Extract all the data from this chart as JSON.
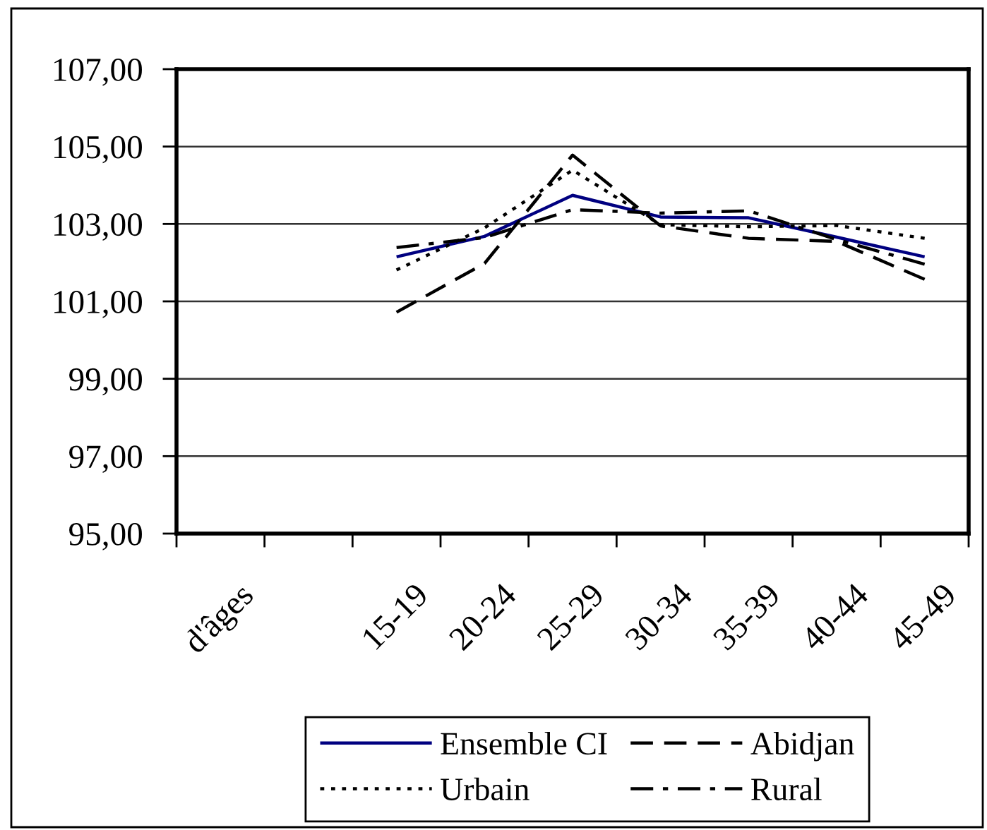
{
  "chart_data": {
    "type": "line",
    "categories": [
      "d'âges",
      null,
      "15-19",
      "20-24",
      "25-29",
      "30-34",
      "35-39",
      "40-44",
      "45-49"
    ],
    "series": [
      {
        "name": "Ensemble CI",
        "color": "#000080",
        "line_style": "solid",
        "values": [
          null,
          null,
          102.15,
          102.68,
          103.74,
          103.18,
          103.16,
          102.66,
          102.15
        ]
      },
      {
        "name": "Abidjan",
        "color": "#000000",
        "line_style": "dashed",
        "values": [
          null,
          null,
          100.72,
          101.98,
          104.78,
          102.95,
          102.63,
          102.55,
          101.57
        ]
      },
      {
        "name": "Urbain",
        "color": "#000000",
        "line_style": "dotted",
        "values": [
          null,
          null,
          101.81,
          102.9,
          104.39,
          102.98,
          102.93,
          102.96,
          102.63
        ]
      },
      {
        "name": "Rural",
        "color": "#000000",
        "line_style": "dashdot",
        "values": [
          null,
          null,
          102.39,
          102.65,
          103.37,
          103.28,
          103.34,
          102.6,
          101.96
        ]
      }
    ],
    "ylim": [
      95,
      107
    ],
    "yticks": [
      {
        "value": 95,
        "label": "95,00"
      },
      {
        "value": 97,
        "label": "97,00"
      },
      {
        "value": 99,
        "label": "99,00"
      },
      {
        "value": 101,
        "label": "101,00"
      },
      {
        "value": 103,
        "label": "103,00"
      },
      {
        "value": 105,
        "label": "105,00"
      },
      {
        "value": 107,
        "label": "107,00"
      }
    ],
    "grid": "y",
    "legend": "bottom"
  }
}
